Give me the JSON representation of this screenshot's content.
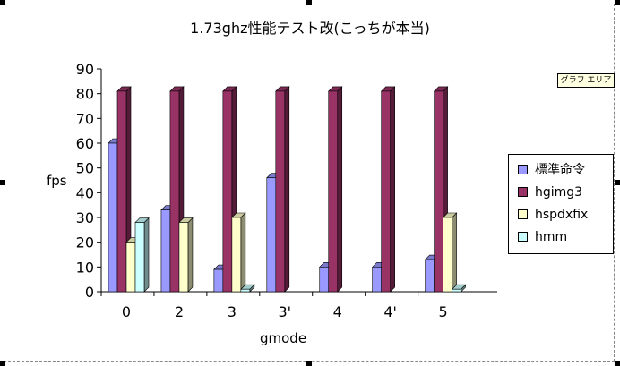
{
  "chart_data": {
    "type": "bar",
    "title": "1.73ghz性能テスト改(こっちが本当)",
    "xlabel": "gmode",
    "ylabel": "fps",
    "ylim": [
      0,
      90
    ],
    "yticks": [
      0,
      10,
      20,
      30,
      40,
      50,
      60,
      70,
      80,
      90
    ],
    "categories": [
      "0",
      "2",
      "3",
      "3'",
      "4",
      "4'",
      "5"
    ],
    "series": [
      {
        "name": "標準命令",
        "color": "#9999ff",
        "values": [
          60,
          33,
          9,
          46,
          10,
          10,
          13
        ]
      },
      {
        "name": "hgimg3",
        "color": "#993366",
        "values": [
          81,
          81,
          81,
          81,
          81,
          81,
          81
        ]
      },
      {
        "name": "hspdxfix",
        "color": "#ffffcc",
        "values": [
          20,
          28,
          30,
          0,
          0,
          0,
          30
        ]
      },
      {
        "name": "hmm",
        "color": "#ccffff",
        "values": [
          28,
          0,
          1,
          0,
          0,
          0,
          1
        ]
      }
    ],
    "legend": "right",
    "grid": false
  },
  "tooltip": "グラフ エリア"
}
